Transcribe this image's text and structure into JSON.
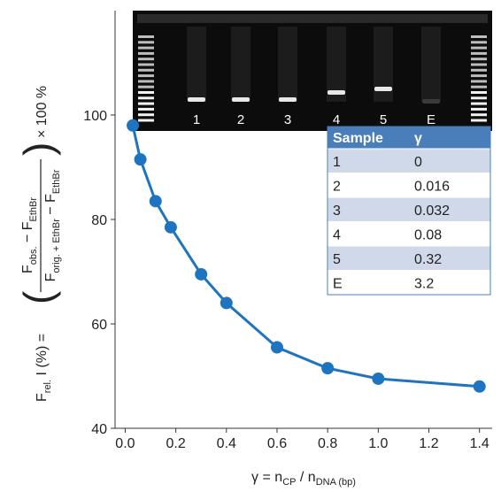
{
  "chart_data": {
    "type": "line",
    "x_label": [
      "γ = n",
      "CP",
      " / n",
      "DNA (bp)"
    ],
    "y_label": {
      "lhs": "F",
      "lhs_sub": "rel.",
      "lhs_rest": " I (%) =",
      "open": "(",
      "close": ")",
      "num": [
        "F",
        "obs.",
        " − F",
        "EthBr"
      ],
      "den": [
        "F",
        "orig. + EthBr",
        " − F",
        "EthBr"
      ],
      "factor": "× 100 %"
    },
    "series": [
      {
        "name": "Frel",
        "color": "#1f74c0",
        "x": [
          0.03,
          0.06,
          0.12,
          0.18,
          0.3,
          0.4,
          0.6,
          0.8,
          1.0,
          1.4
        ],
        "values": [
          98,
          91.5,
          83.5,
          78.5,
          69.5,
          64,
          55.5,
          51.5,
          49.5,
          48
        ]
      }
    ],
    "xlim": [
      -0.04,
      1.45
    ],
    "xticks": [
      {
        "value": 0,
        "label": "0.0"
      },
      0.2,
      0.4,
      0.6,
      0.8,
      {
        "value": 1,
        "label": "1.0"
      },
      1.2,
      1.4
    ],
    "ylim": [
      40,
      120
    ],
    "yticks": [
      40,
      60,
      80,
      100
    ]
  },
  "gel_lanes": [
    "1",
    "2",
    "3",
    "4",
    "5",
    "E"
  ],
  "inset_table": {
    "header": [
      "Sample",
      "γ"
    ],
    "rows": [
      [
        "1",
        "0"
      ],
      [
        "2",
        "0.016"
      ],
      [
        "3",
        "0.032"
      ],
      [
        "4",
        "0.08"
      ],
      [
        "5",
        "0.32"
      ],
      [
        "E",
        "3.2"
      ]
    ]
  }
}
